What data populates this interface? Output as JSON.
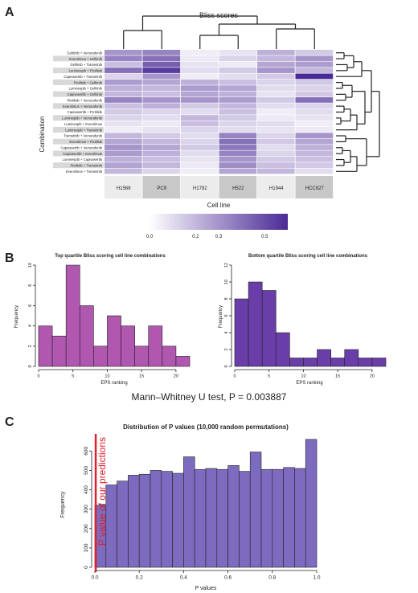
{
  "panel_labels": [
    "A",
    "B",
    "C"
  ],
  "chart_data": [
    {
      "type": "heatmap",
      "title": "Bliss scores",
      "xlabel": "Cell line",
      "ylabel": "Combination",
      "columns": [
        "H1568",
        "PC9",
        "H1792",
        "H522",
        "H1944",
        "HCC827"
      ],
      "rows": [
        "Gefitinib + Vemurafenib",
        "Everolimus + Gefitinib",
        "Gefitinib + Trametinib",
        "Luminespib + Pictilisib",
        "Capivasertib + Trametinib",
        "Pictilisib + Gefitinib",
        "Luminespib + Gefitinib",
        "Capivasertib + Gefitinib",
        "Pictilisib + Vemurafenib",
        "Everolimus + Vemurafenib",
        "Capivasertib + Pictilisib",
        "Luminespib + Vemurafenib",
        "Luminespib + Everolimus",
        "Luminespib + Trametinib",
        "Trametinib + Vemurafenib",
        "Everolimus + Pictilisib",
        "Capivasertib + Vemurafenib",
        "Capivasertib + Everolimus",
        "Luminespib + Capivasertib",
        "Pictilisib + Trametinib",
        "Everolimus + Trametinib"
      ],
      "values": [
        [
          0.3,
          0.35,
          0.05,
          0.08,
          0.22,
          0.15
        ],
        [
          0.35,
          0.4,
          0.06,
          0.12,
          0.2,
          0.3
        ],
        [
          0.18,
          0.45,
          0.08,
          0.06,
          0.25,
          0.28
        ],
        [
          0.4,
          0.55,
          0.1,
          0.15,
          0.3,
          0.2
        ],
        [
          0.12,
          0.3,
          0.05,
          0.1,
          0.15,
          0.6
        ],
        [
          0.28,
          0.25,
          0.22,
          0.18,
          0.12,
          0.15
        ],
        [
          0.22,
          0.2,
          0.28,
          0.25,
          0.1,
          0.12
        ],
        [
          0.2,
          0.18,
          0.25,
          0.22,
          0.08,
          0.15
        ],
        [
          0.35,
          0.3,
          0.3,
          0.28,
          0.15,
          0.4
        ],
        [
          0.18,
          0.22,
          0.15,
          0.2,
          0.1,
          0.12
        ],
        [
          0.15,
          0.12,
          0.1,
          0.18,
          0.05,
          0.1
        ],
        [
          0.12,
          0.1,
          0.2,
          0.15,
          0.06,
          0.08
        ],
        [
          0.08,
          0.06,
          0.18,
          0.12,
          0.1,
          0.05
        ],
        [
          0.05,
          0.08,
          0.12,
          0.1,
          0.08,
          0.06
        ],
        [
          0.2,
          0.15,
          0.1,
          0.35,
          0.12,
          0.3
        ],
        [
          0.25,
          0.2,
          0.12,
          0.4,
          0.15,
          0.25
        ],
        [
          0.3,
          0.25,
          0.15,
          0.38,
          0.1,
          0.22
        ],
        [
          0.28,
          0.22,
          0.1,
          0.35,
          0.12,
          0.2
        ],
        [
          0.22,
          0.18,
          0.08,
          0.3,
          0.15,
          0.18
        ],
        [
          0.26,
          0.2,
          0.06,
          0.32,
          0.18,
          0.15
        ],
        [
          0.2,
          0.12,
          0.05,
          0.25,
          0.2,
          0.1
        ]
      ],
      "colorbar": {
        "ticks": [
          "0.0",
          "0.2",
          "0.3",
          "0.5"
        ],
        "min": 0.0,
        "max": 0.6
      },
      "colors": {
        "low": "#ffffff",
        "high": "#4a2a96",
        "column_label_light": "#ececec",
        "column_label_dark": "#c8c8c8",
        "row_label_shade": "#d8d8d8"
      }
    },
    {
      "type": "bar",
      "title": "Top quartile Bliss scoring cell line combinations",
      "xlabel": "EPS ranking",
      "ylabel": "Frequency",
      "bin_edges": [
        0,
        2,
        4,
        6,
        8,
        10,
        12,
        14,
        16,
        18,
        20,
        22
      ],
      "values": [
        4,
        3,
        10,
        6,
        2,
        5,
        4,
        2,
        4,
        2,
        1
      ],
      "xticks": [
        0,
        5,
        10,
        15,
        20
      ],
      "yticks": [
        0,
        2,
        4,
        6,
        8,
        10
      ],
      "ylim": [
        0,
        10
      ],
      "xlim": [
        0,
        22
      ],
      "color": "#b057b0"
    },
    {
      "type": "bar",
      "title": "Bottom quartile Bliss scoring cell line combinations",
      "xlabel": "EPS ranking",
      "ylabel": "Frequency",
      "bin_edges": [
        0,
        2,
        4,
        6,
        8,
        10,
        12,
        14,
        16,
        18,
        20,
        22
      ],
      "values": [
        8,
        10,
        9,
        4,
        1,
        1,
        2,
        1,
        2,
        1,
        1
      ],
      "xticks": [
        0,
        5,
        10,
        15,
        20
      ],
      "yticks": [
        0,
        2,
        4,
        6,
        8,
        10,
        12
      ],
      "ylim": [
        0,
        12
      ],
      "xlim": [
        0,
        22
      ],
      "color": "#6a3ea8"
    },
    {
      "type": "bar",
      "title": "Distribution of P values (10,000 random permutations)",
      "xlabel": "P values",
      "ylabel": "Frequency",
      "bin_edges": [
        0,
        0.05,
        0.1,
        0.15,
        0.2,
        0.25,
        0.3,
        0.35,
        0.4,
        0.45,
        0.5,
        0.55,
        0.6,
        0.65,
        0.7,
        0.75,
        0.8,
        0.85,
        0.9,
        0.95,
        1.0
      ],
      "values": [
        320,
        425,
        445,
        475,
        480,
        500,
        495,
        485,
        570,
        505,
        510,
        505,
        525,
        495,
        595,
        505,
        505,
        515,
        510,
        660
      ],
      "xticks": [
        0.0,
        0.2,
        0.4,
        0.6,
        0.8,
        1.0
      ],
      "yticks": [
        0,
        100,
        200,
        300,
        400,
        500,
        600
      ],
      "ylim": [
        0,
        680
      ],
      "xlim": [
        0,
        1
      ],
      "color": "#7d6bc0",
      "annotation": {
        "x": 0.003887,
        "text": "P value of our predictions",
        "color": "#e0202a"
      }
    }
  ],
  "stat_text": "Mann–Whitney U test, P = 0.003887"
}
